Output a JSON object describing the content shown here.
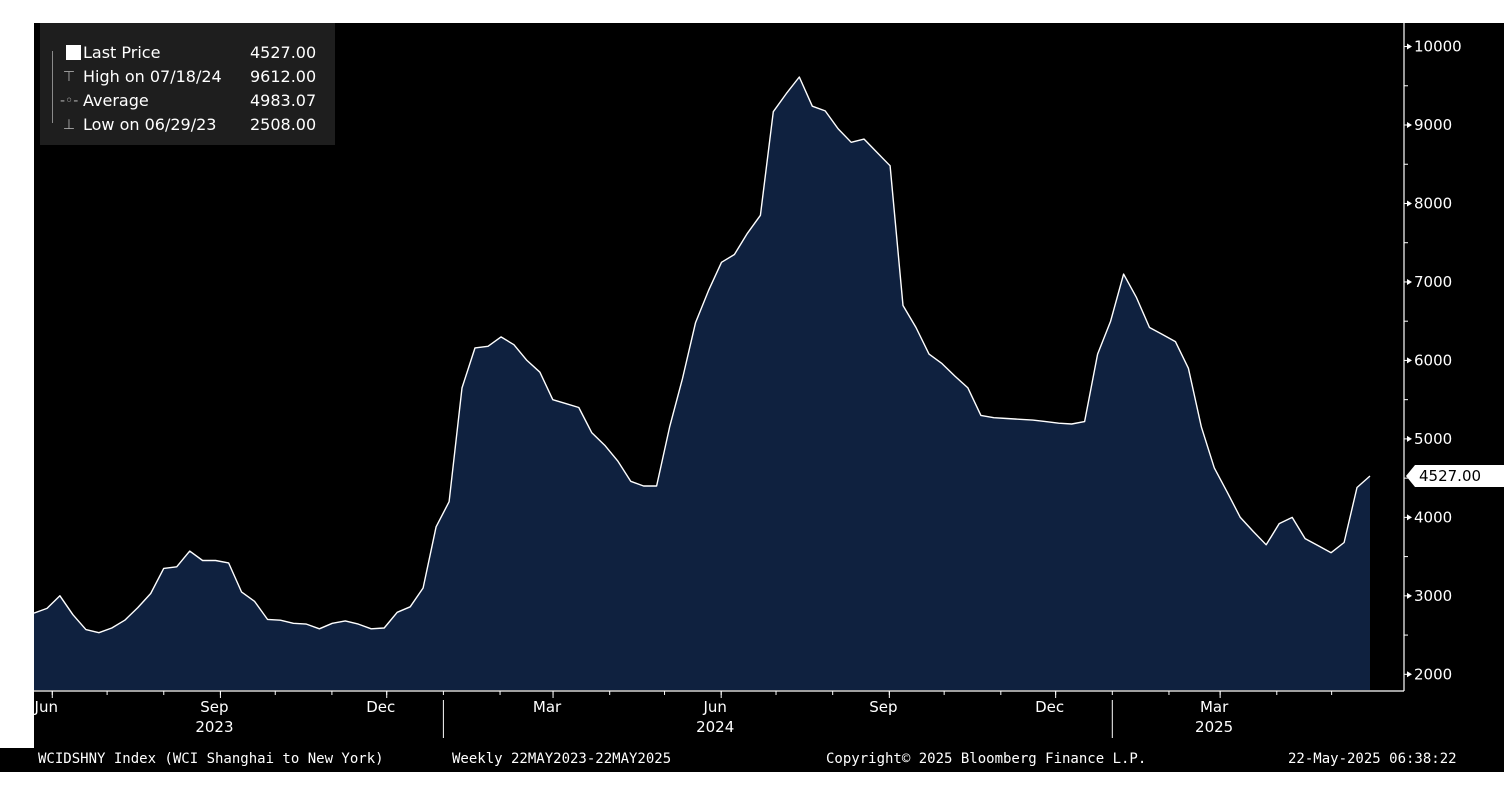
{
  "legend": {
    "items": [
      {
        "name": "Last Price",
        "value": "4527.00",
        "icon": "square-swatch-icon"
      },
      {
        "name": "High on 07/18/24",
        "value": "9612.00",
        "icon": "high-marker-icon"
      },
      {
        "name": "Average",
        "value": "4983.07",
        "icon": "average-marker-icon"
      },
      {
        "name": "Low on 06/29/23",
        "value": "2508.00",
        "icon": "low-marker-icon"
      }
    ]
  },
  "price_tag": "4527.00",
  "footer": {
    "index": "WCIDSHNY Index (WCI Shanghai to New York)",
    "period": "Weekly 22MAY2023-22MAY2025",
    "copyright": "Copyright© 2025 Bloomberg Finance L.P.",
    "timestamp": "22-May-2025 06:38:22"
  },
  "colors": {
    "background": "#000000",
    "area_fill": "#0f213f",
    "line": "#ffffff",
    "axis": "#ffffff"
  },
  "chart_data": {
    "type": "area",
    "x_start": "2023-05-22",
    "x_end": "2025-05-22",
    "frequency": "weekly",
    "ylim": [
      1800,
      10300
    ],
    "y_ticks": [
      2000,
      3000,
      4000,
      5000,
      6000,
      7000,
      8000,
      9000,
      10000
    ],
    "x_ticks": [
      {
        "date": "2023-06-01",
        "label": "Jun"
      },
      {
        "date": "2023-09-01",
        "label": "Sep"
      },
      {
        "date": "2023-12-01",
        "label": "Dec"
      },
      {
        "date": "2024-03-01",
        "label": "Mar"
      },
      {
        "date": "2024-06-01",
        "label": "Jun"
      },
      {
        "date": "2024-09-01",
        "label": "Sep"
      },
      {
        "date": "2024-12-01",
        "label": "Dec"
      },
      {
        "date": "2025-03-01",
        "label": "Mar"
      }
    ],
    "year_labels": [
      {
        "date": "2023-09-01",
        "label": "2023"
      },
      {
        "date": "2024-06-01",
        "label": "2024"
      },
      {
        "date": "2025-03-01",
        "label": "2025"
      }
    ],
    "year_boundaries": [
      "2024-01-01",
      "2025-01-01"
    ],
    "series": [
      {
        "values": [
          2780,
          2840,
          3000,
          2760,
          2570,
          2530,
          2590,
          2690,
          2850,
          3030,
          3350,
          3370,
          3570,
          3450,
          3450,
          3420,
          3050,
          2930,
          2700,
          2690,
          2650,
          2640,
          2580,
          2650,
          2680,
          2640,
          2580,
          2590,
          2790,
          2860,
          3100,
          3880,
          4200,
          5650,
          6160,
          6180,
          6300,
          6200,
          6000,
          5850,
          5500,
          5450,
          5400,
          5080,
          4920,
          4720,
          4460,
          4400,
          4400,
          5150,
          5770,
          6480,
          6890,
          7250,
          7350,
          7620,
          7850,
          9170,
          9400,
          9612,
          9240,
          9180,
          8950,
          8780,
          8820,
          8650,
          8480,
          6700,
          6420,
          6080,
          5960,
          5800,
          5650,
          5300,
          5270,
          5260,
          5250,
          5240,
          5220,
          5200,
          5190,
          5220,
          6080,
          6500,
          7100,
          6800,
          6420,
          6330,
          6240,
          5900,
          5150,
          4630,
          4320,
          4000,
          3820,
          3650,
          3920,
          4000,
          3730,
          3640,
          3550,
          3680,
          4380,
          4527
        ]
      }
    ]
  }
}
